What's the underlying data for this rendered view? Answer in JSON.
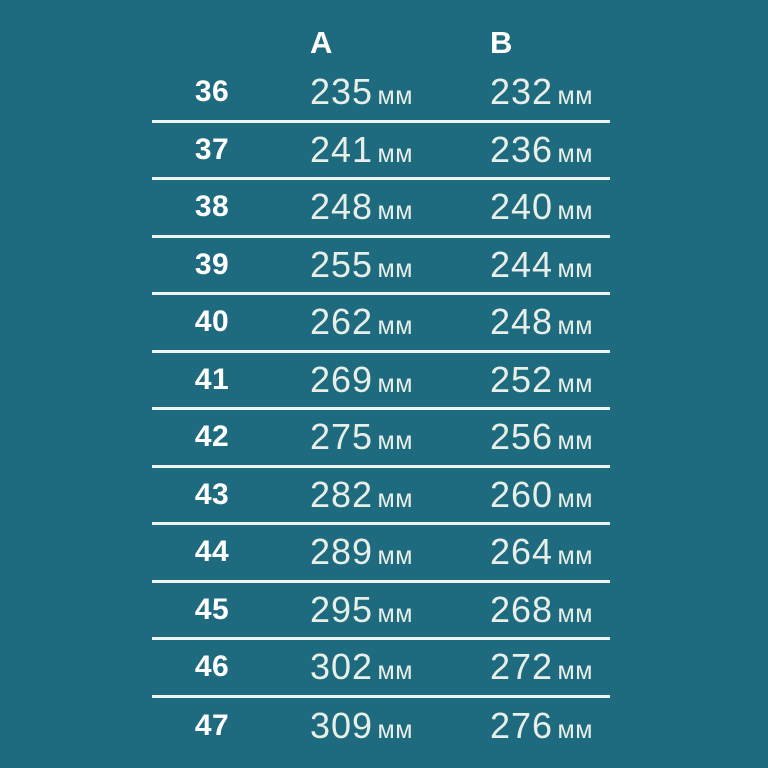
{
  "page": {
    "background_color": "#1E6A7E",
    "line_color": "#ECF4F2",
    "size_text_color": "#FFFFFF",
    "value_text_color": "#E8EFE9",
    "unit_label": "мм"
  },
  "table": {
    "columns": [
      {
        "key": "size",
        "label": ""
      },
      {
        "key": "a",
        "label": "A"
      },
      {
        "key": "b",
        "label": "B"
      }
    ],
    "rows": [
      {
        "size": "36",
        "a": "235",
        "b": "232"
      },
      {
        "size": "37",
        "a": "241",
        "b": "236"
      },
      {
        "size": "38",
        "a": "248",
        "b": "240"
      },
      {
        "size": "39",
        "a": "255",
        "b": "244"
      },
      {
        "size": "40",
        "a": "262",
        "b": "248"
      },
      {
        "size": "41",
        "a": "269",
        "b": "252"
      },
      {
        "size": "42",
        "a": "275",
        "b": "256"
      },
      {
        "size": "43",
        "a": "282",
        "b": "260"
      },
      {
        "size": "44",
        "a": "289",
        "b": "264"
      },
      {
        "size": "45",
        "a": "295",
        "b": "268"
      },
      {
        "size": "46",
        "a": "302",
        "b": "272"
      },
      {
        "size": "47",
        "a": "309",
        "b": "276"
      }
    ]
  },
  "chart_data": {
    "type": "table",
    "title": "",
    "columns": [
      "size",
      "A",
      "B"
    ],
    "unit": "мм",
    "rows": [
      [
        36,
        235,
        232
      ],
      [
        37,
        241,
        236
      ],
      [
        38,
        248,
        240
      ],
      [
        39,
        255,
        244
      ],
      [
        40,
        262,
        248
      ],
      [
        41,
        269,
        252
      ],
      [
        42,
        275,
        256
      ],
      [
        43,
        282,
        260
      ],
      [
        44,
        289,
        264
      ],
      [
        45,
        295,
        268
      ],
      [
        46,
        302,
        272
      ],
      [
        47,
        309,
        276
      ]
    ]
  }
}
